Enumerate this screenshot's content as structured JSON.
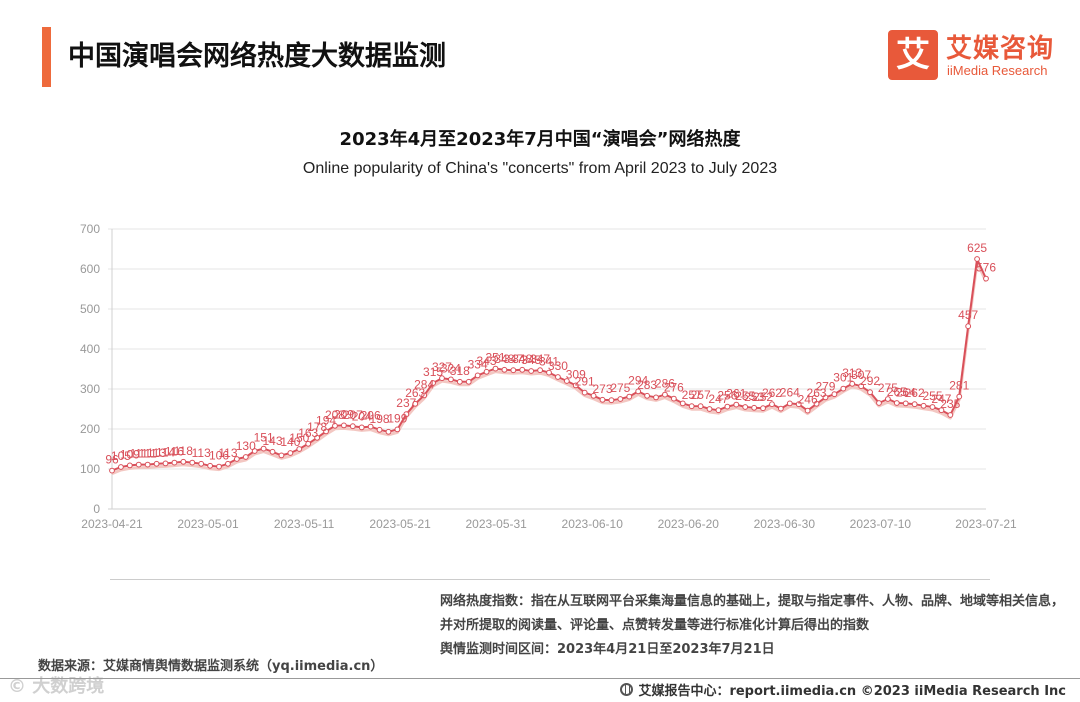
{
  "header": {
    "title": "中国演唱会网络热度大数据监测"
  },
  "logo": {
    "mark": "艾",
    "name_cn": "艾媒咨询",
    "name_en": "iiMedia Research"
  },
  "colors": {
    "accent": "#ee6a3c",
    "series_line": "#d9505a",
    "series_shadow": "#f3c7c2",
    "axis_text": "#999999",
    "grid": "#e6e6e6"
  },
  "chart_data": {
    "type": "line",
    "title": "2023年4月至2023年7月中国“演唱会”网络热度",
    "subtitle": "Online popularity of China's \"concerts\" from April 2023 to July 2023",
    "xlabel": "",
    "ylabel": "",
    "ylim": [
      0,
      700
    ],
    "y_ticks": [
      0,
      100,
      200,
      300,
      400,
      500,
      600,
      700
    ],
    "x_ticks": [
      "2023-04-21",
      "2023-05-01",
      "2023-05-11",
      "2023-05-21",
      "2023-05-31",
      "2023-06-10",
      "2023-06-20",
      "2023-06-30",
      "2023-07-10",
      "2023-07-21"
    ],
    "grid": true,
    "legend": "none",
    "x_start": "2023-04-21",
    "x_end": "2023-07-21",
    "series": [
      {
        "name": "",
        "values": [
          96,
          105,
          109,
          111,
          111,
          113,
          114,
          116,
          118,
          116,
          113,
          108,
          106,
          113,
          125,
          130,
          145,
          151,
          143,
          134,
          140,
          150,
          163,
          178,
          194,
          208,
          209,
          207,
          204,
          206,
          198,
          193,
          199,
          237,
          263,
          284,
          315,
          327,
          324,
          318,
          318,
          334,
          343,
          351,
          348,
          347,
          348,
          345,
          347,
          341,
          330,
          320,
          309,
          291,
          283,
          273,
          272,
          275,
          281,
          294,
          283,
          279,
          286,
          276,
          264,
          257,
          257,
          250,
          247,
          256,
          261,
          255,
          253,
          252,
          262,
          251,
          264,
          262,
          246,
          263,
          279,
          287,
          301,
          313,
          307,
          292,
          265,
          275,
          265,
          264,
          262,
          258,
          255,
          247,
          235,
          281,
          457,
          625,
          576
        ]
      }
    ],
    "data_labels": [
      {
        "i": 0,
        "text": "96"
      },
      {
        "i": 1,
        "text": "105"
      },
      {
        "i": 2,
        "text": "109"
      },
      {
        "i": 3,
        "text": "111"
      },
      {
        "i": 4,
        "text": "111"
      },
      {
        "i": 5,
        "text": "113"
      },
      {
        "i": 6,
        "text": "114"
      },
      {
        "i": 7,
        "text": "116"
      },
      {
        "i": 8,
        "text": "118"
      },
      {
        "i": 10,
        "text": "113"
      },
      {
        "i": 12,
        "text": "106"
      },
      {
        "i": 13,
        "text": "113"
      },
      {
        "i": 15,
        "text": "130"
      },
      {
        "i": 17,
        "text": "151"
      },
      {
        "i": 18,
        "text": "143"
      },
      {
        "i": 20,
        "text": "140"
      },
      {
        "i": 21,
        "text": "150"
      },
      {
        "i": 22,
        "text": "163"
      },
      {
        "i": 23,
        "text": "178"
      },
      {
        "i": 24,
        "text": "194"
      },
      {
        "i": 25,
        "text": "208"
      },
      {
        "i": 26,
        "text": "209"
      },
      {
        "i": 27,
        "text": "207"
      },
      {
        "i": 28,
        "text": "204"
      },
      {
        "i": 29,
        "text": "206"
      },
      {
        "i": 30,
        "text": "198"
      },
      {
        "i": 32,
        "text": "199"
      },
      {
        "i": 33,
        "text": "237"
      },
      {
        "i": 34,
        "text": "263"
      },
      {
        "i": 35,
        "text": "284"
      },
      {
        "i": 36,
        "text": "315"
      },
      {
        "i": 37,
        "text": "327"
      },
      {
        "i": 38,
        "text": "324"
      },
      {
        "i": 39,
        "text": "318"
      },
      {
        "i": 41,
        "text": "334"
      },
      {
        "i": 42,
        "text": "343"
      },
      {
        "i": 43,
        "text": "351"
      },
      {
        "i": 44,
        "text": "348"
      },
      {
        "i": 45,
        "text": "347"
      },
      {
        "i": 46,
        "text": "348"
      },
      {
        "i": 47,
        "text": "345"
      },
      {
        "i": 48,
        "text": "347"
      },
      {
        "i": 49,
        "text": "341"
      },
      {
        "i": 50,
        "text": "330"
      },
      {
        "i": 52,
        "text": "309"
      },
      {
        "i": 53,
        "text": "291"
      },
      {
        "i": 55,
        "text": "273"
      },
      {
        "i": 57,
        "text": "275"
      },
      {
        "i": 59,
        "text": "294"
      },
      {
        "i": 60,
        "text": "283"
      },
      {
        "i": 62,
        "text": "286"
      },
      {
        "i": 63,
        "text": "276"
      },
      {
        "i": 65,
        "text": "257"
      },
      {
        "i": 66,
        "text": "257"
      },
      {
        "i": 68,
        "text": "247"
      },
      {
        "i": 69,
        "text": "256"
      },
      {
        "i": 70,
        "text": "261"
      },
      {
        "i": 71,
        "text": "255"
      },
      {
        "i": 72,
        "text": "253"
      },
      {
        "i": 73,
        "text": "252"
      },
      {
        "i": 74,
        "text": "262"
      },
      {
        "i": 76,
        "text": "264"
      },
      {
        "i": 78,
        "text": "246"
      },
      {
        "i": 79,
        "text": "263"
      },
      {
        "i": 80,
        "text": "279"
      },
      {
        "i": 82,
        "text": "301"
      },
      {
        "i": 83,
        "text": "313"
      },
      {
        "i": 84,
        "text": "307"
      },
      {
        "i": 85,
        "text": "292"
      },
      {
        "i": 87,
        "text": "275"
      },
      {
        "i": 88,
        "text": "265"
      },
      {
        "i": 89,
        "text": "264"
      },
      {
        "i": 90,
        "text": "262"
      },
      {
        "i": 92,
        "text": "255"
      },
      {
        "i": 93,
        "text": "247"
      },
      {
        "i": 94,
        "text": "235"
      },
      {
        "i": 95,
        "text": "281"
      },
      {
        "i": 96,
        "text": "457"
      },
      {
        "i": 97,
        "text": "625"
      },
      {
        "i": 98,
        "text": "576"
      }
    ]
  },
  "notes": {
    "definition": "网络热度指数：指在从互联网平台采集海量信息的基础上，提取与指定事件、人物、品牌、地域等相关信息，并对所提取的阅读量、评论量、点赞转发量等进行标准化计算后得出的指数",
    "period": "舆情监测时间区间：2023年4月21日至2023年7月21日",
    "source": "数据来源：艾媒商情舆情数据监测系统（yq.iimedia.cn）"
  },
  "watermark": "© 大数跨境",
  "footer": {
    "text": "艾媒报告中心：report.iimedia.cn  ©2023  iiMedia Research  Inc"
  }
}
